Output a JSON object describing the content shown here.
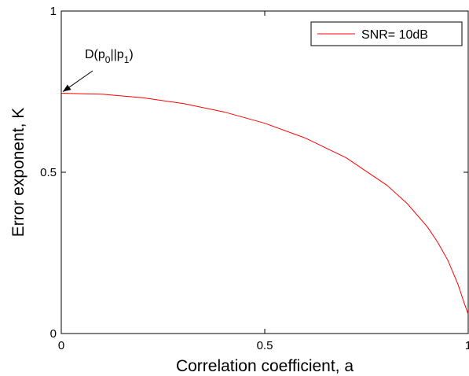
{
  "chart_data": {
    "type": "line",
    "xlabel": "Correlation coefficient, a",
    "ylabel": "Error exponent, K",
    "xlim": [
      0,
      1
    ],
    "ylim": [
      0,
      1
    ],
    "xticks": [
      0,
      0.5,
      1
    ],
    "yticks": [
      0,
      0.5,
      1
    ],
    "xtick_labels": [
      "0",
      "0.5",
      "1"
    ],
    "ytick_labels": [
      "0",
      "0.5",
      "1"
    ],
    "grid": false,
    "legend_position": "top-right",
    "series": [
      {
        "name": "SNR= 10dB",
        "color": "#ff0000",
        "x": [
          0,
          0.1,
          0.2,
          0.3,
          0.4,
          0.5,
          0.6,
          0.7,
          0.8,
          0.85,
          0.9,
          0.925,
          0.95,
          0.975,
          0.99,
          1.0
        ],
        "y": [
          0.745,
          0.742,
          0.731,
          0.713,
          0.687,
          0.652,
          0.606,
          0.545,
          0.46,
          0.403,
          0.33,
          0.283,
          0.227,
          0.152,
          0.095,
          0.06
        ]
      }
    ],
    "annotations": [
      {
        "text_main": "D(p",
        "sub1": "0",
        "text_mid": "||p",
        "sub2": "1",
        "text_end": ")",
        "arrow_target": {
          "x": 0,
          "y": 0.745
        }
      }
    ]
  }
}
